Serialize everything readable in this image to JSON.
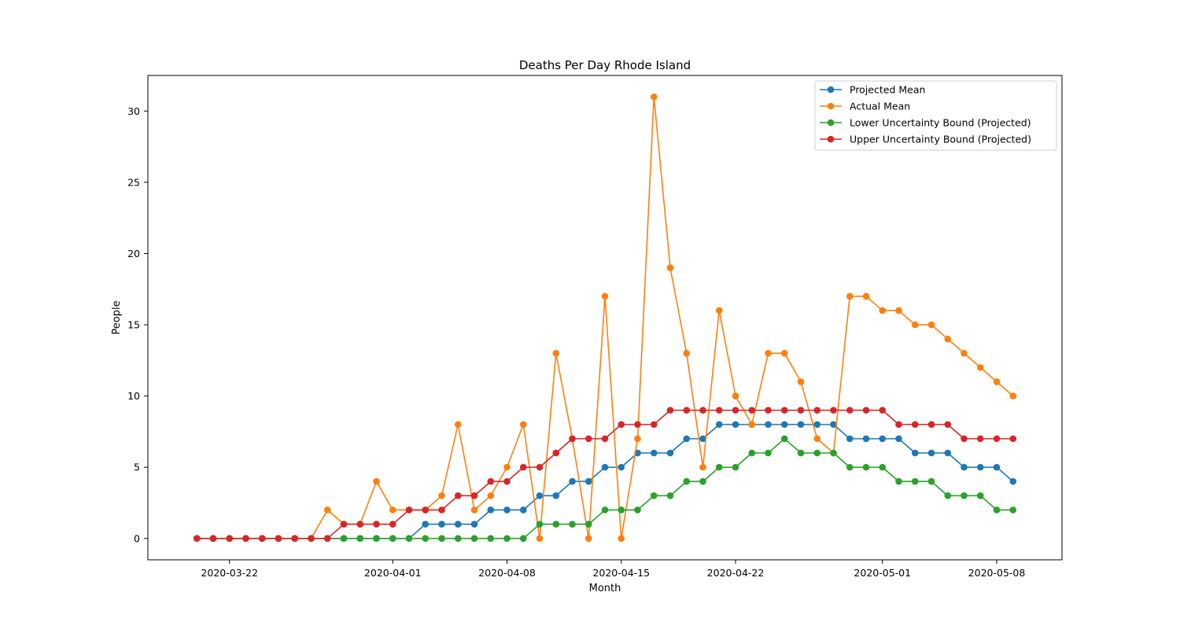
{
  "chart_data": {
    "type": "line",
    "title": "Deaths Per Day Rhode Island",
    "xlabel": "Month",
    "ylabel": "People",
    "x_start": "2020-03-20",
    "x_end": "2020-05-09",
    "xlim": [
      "2020-03-17",
      "2020-05-12"
    ],
    "ylim": [
      -1.5,
      32.5
    ],
    "x_ticks": [
      "2020-03-22",
      "2020-04-01",
      "2020-04-08",
      "2020-04-15",
      "2020-04-22",
      "2020-05-01",
      "2020-05-08"
    ],
    "y_ticks": [
      0,
      5,
      10,
      15,
      20,
      25,
      30
    ],
    "grid": false,
    "legend_position": "top-right",
    "series": [
      {
        "name": "Projected Mean",
        "color": "#1f77b4",
        "values": [
          0,
          0,
          0,
          0,
          0,
          0,
          0,
          0,
          0,
          0,
          0,
          0,
          0,
          0,
          1,
          1,
          1,
          1,
          2,
          2,
          2,
          3,
          3,
          4,
          4,
          5,
          5,
          6,
          6,
          6,
          7,
          7,
          8,
          8,
          8,
          8,
          8,
          8,
          8,
          8,
          7,
          7,
          7,
          7,
          6,
          6,
          6,
          5,
          5,
          5,
          4
        ]
      },
      {
        "name": "Actual Mean",
        "color": "#ff7f0e",
        "values": [
          0,
          0,
          0,
          0,
          0,
          0,
          0,
          0,
          2,
          1,
          1,
          4,
          2,
          2,
          2,
          3,
          8,
          2,
          3,
          5,
          8,
          0,
          13,
          7,
          0,
          17,
          0,
          7,
          31,
          19,
          13,
          5,
          16,
          10,
          8,
          13,
          13,
          11,
          7,
          6,
          17,
          17,
          16,
          16,
          15,
          15,
          14,
          13,
          12,
          11,
          10
        ]
      },
      {
        "name": "Lower Uncertainty Bound (Projected)",
        "color": "#2ca02c",
        "values": [
          0,
          0,
          0,
          0,
          0,
          0,
          0,
          0,
          0,
          0,
          0,
          0,
          0,
          0,
          0,
          0,
          0,
          0,
          0,
          0,
          0,
          1,
          1,
          1,
          1,
          2,
          2,
          2,
          3,
          3,
          4,
          4,
          5,
          5,
          6,
          6,
          7,
          6,
          6,
          6,
          5,
          5,
          5,
          4,
          4,
          4,
          3,
          3,
          3,
          2,
          2
        ]
      },
      {
        "name": "Upper Uncertainty Bound (Projected)",
        "color": "#d62728",
        "values": [
          0,
          0,
          0,
          0,
          0,
          0,
          0,
          0,
          0,
          1,
          1,
          1,
          1,
          2,
          2,
          2,
          3,
          3,
          4,
          4,
          5,
          5,
          6,
          7,
          7,
          7,
          8,
          8,
          8,
          9,
          9,
          9,
          9,
          9,
          9,
          9,
          9,
          9,
          9,
          9,
          9,
          9,
          9,
          8,
          8,
          8,
          8,
          7,
          7,
          7,
          7
        ]
      }
    ]
  }
}
